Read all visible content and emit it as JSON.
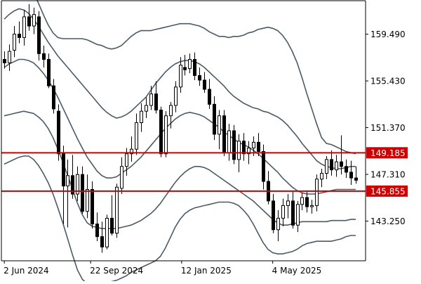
{
  "chart_data": {
    "type": "candlestick",
    "y_axis": {
      "range": [
        139.8,
        162.4
      ],
      "ticks": [
        "159.490",
        "155.430",
        "151.370",
        "147.310",
        "143.250"
      ],
      "tick_values": [
        159.49,
        155.43,
        151.37,
        147.31,
        143.25
      ]
    },
    "x_axis": {
      "range": [
        0,
        1
      ],
      "labels": [
        "2 Jun 2024",
        "22 Sep 2024",
        "12 Jan 2025",
        "4 May 2025"
      ],
      "label_positions": [
        0.008,
        0.245,
        0.495,
        0.745
      ]
    },
    "horizontal_lines": [
      {
        "value": 149.185,
        "label": "149.185"
      },
      {
        "value": 145.855,
        "label": "145.855"
      }
    ],
    "candles": [
      [
        157.3,
        158.0,
        156.5,
        157.0
      ],
      [
        157.0,
        158.6,
        156.3,
        158.0
      ],
      [
        158.1,
        160.2,
        157.5,
        159.5
      ],
      [
        159.5,
        160.6,
        158.7,
        159.2
      ],
      [
        159.2,
        161.6,
        158.5,
        161.0
      ],
      [
        161.0,
        162.1,
        159.8,
        160.2
      ],
      [
        160.2,
        161.8,
        159.5,
        161.2
      ],
      [
        161.0,
        161.5,
        157.2,
        157.8
      ],
      [
        157.8,
        158.5,
        156.6,
        157.3
      ],
      [
        157.3,
        157.8,
        154.8,
        155.0
      ],
      [
        155.0,
        155.6,
        152.6,
        153.0
      ],
      [
        152.8,
        153.4,
        148.5,
        149.1
      ],
      [
        149.1,
        149.8,
        143.0,
        146.3
      ],
      [
        146.3,
        148.6,
        142.7,
        147.2
      ],
      [
        147.2,
        149.0,
        145.2,
        145.6
      ],
      [
        145.6,
        148.0,
        145.0,
        147.3
      ],
      [
        147.3,
        148.0,
        143.9,
        144.1
      ],
      [
        144.1,
        147.3,
        143.5,
        146.0
      ],
      [
        146.0,
        146.7,
        142.6,
        143.0
      ],
      [
        143.0,
        144.0,
        141.5,
        141.9
      ],
      [
        141.9,
        143.2,
        140.5,
        141.0
      ],
      [
        141.0,
        143.8,
        140.8,
        143.5
      ],
      [
        143.5,
        145.5,
        142.0,
        142.2
      ],
      [
        142.2,
        146.5,
        141.8,
        146.2
      ],
      [
        146.1,
        148.8,
        145.6,
        148.0
      ],
      [
        148.0,
        149.6,
        147.2,
        149.1
      ],
      [
        149.1,
        150.6,
        148.4,
        149.5
      ],
      [
        149.5,
        152.6,
        149.0,
        151.8
      ],
      [
        151.8,
        153.5,
        151.0,
        152.8
      ],
      [
        152.8,
        154.0,
        152.2,
        153.3
      ],
      [
        153.3,
        155.0,
        152.9,
        154.3
      ],
      [
        154.3,
        155.4,
        152.6,
        152.9
      ],
      [
        152.9,
        153.2,
        148.8,
        149.1
      ],
      [
        149.1,
        152.8,
        148.8,
        152.4
      ],
      [
        152.4,
        153.6,
        151.3,
        153.3
      ],
      [
        153.3,
        155.4,
        152.7,
        154.9
      ],
      [
        154.9,
        157.5,
        154.4,
        156.8
      ],
      [
        156.6,
        157.7,
        155.9,
        156.4
      ],
      [
        156.5,
        157.8,
        156.1,
        157.3
      ],
      [
        157.3,
        157.9,
        155.5,
        155.9
      ],
      [
        155.9,
        156.6,
        155.0,
        155.5
      ],
      [
        155.5,
        156.2,
        154.4,
        154.7
      ],
      [
        154.7,
        155.6,
        153.0,
        153.4
      ],
      [
        153.4,
        154.1,
        150.3,
        150.8
      ],
      [
        150.8,
        152.9,
        149.5,
        152.4
      ],
      [
        152.4,
        152.9,
        148.9,
        149.2
      ],
      [
        149.2,
        151.7,
        148.5,
        151.1
      ],
      [
        151.1,
        151.6,
        148.2,
        148.6
      ],
      [
        148.6,
        150.8,
        147.5,
        150.2
      ],
      [
        150.2,
        150.9,
        148.5,
        149.1
      ],
      [
        149.1,
        150.2,
        148.2,
        149.6
      ],
      [
        149.6,
        150.6,
        148.9,
        150.1
      ],
      [
        150.1,
        150.9,
        148.9,
        149.3
      ],
      [
        149.3,
        149.9,
        146.0,
        146.7
      ],
      [
        146.7,
        147.6,
        144.7,
        145.0
      ],
      [
        145.0,
        145.6,
        142.2,
        142.5
      ],
      [
        142.5,
        144.2,
        141.5,
        143.5
      ],
      [
        143.5,
        145.2,
        142.8,
        144.6
      ],
      [
        144.6,
        145.6,
        143.5,
        145.0
      ],
      [
        145.0,
        145.8,
        142.6,
        142.9
      ],
      [
        142.9,
        145.0,
        142.3,
        144.7
      ],
      [
        144.7,
        145.7,
        144.2,
        145.3
      ],
      [
        145.3,
        145.8,
        144.0,
        144.5
      ],
      [
        144.5,
        145.1,
        143.9,
        144.6
      ],
      [
        144.6,
        147.3,
        144.1,
        146.9
      ],
      [
        146.9,
        147.8,
        146.2,
        147.4
      ],
      [
        147.4,
        148.9,
        146.9,
        148.6
      ],
      [
        148.6,
        149.4,
        147.2,
        147.7
      ],
      [
        147.7,
        149.0,
        147.1,
        148.4
      ],
      [
        148.4,
        150.7,
        147.3,
        148.0
      ],
      [
        148.0,
        148.6,
        147.0,
        147.5
      ],
      [
        147.5,
        148.5,
        146.4,
        147.0
      ],
      [
        147.0,
        148.0,
        146.5,
        146.8
      ]
    ],
    "bands": [
      {
        "name": "upper",
        "values": [
          163.4,
          163.9,
          164.4,
          164.7,
          164.6,
          164.0,
          163.2,
          162.2,
          161.2,
          160.3,
          159.6,
          159.2,
          159.1,
          159.1,
          159.1,
          159.1,
          159.1,
          159.0,
          158.8,
          158.6,
          158.5,
          158.3,
          158.2,
          158.3,
          158.5,
          158.9,
          159.3,
          159.6,
          159.8,
          159.8,
          159.8,
          159.9,
          160.0,
          160.1,
          160.2,
          160.3,
          160.4,
          160.4,
          160.4,
          160.3,
          160.2,
          160.0,
          159.7,
          159.5,
          159.3,
          159.3,
          159.2,
          159.3,
          159.3,
          159.4,
          159.6,
          159.7,
          159.9,
          160.0,
          160.1,
          160.0,
          159.8,
          159.4,
          158.8,
          158.0,
          157.0,
          155.7,
          154.3,
          153.0,
          151.7,
          150.5,
          150.0,
          149.9,
          149.7,
          149.5,
          149.3,
          149.2,
          149.1
        ]
      },
      {
        "name": "upper-mid",
        "values": [
          160.8,
          161.2,
          161.5,
          161.7,
          161.6,
          161.3,
          160.8,
          160.2,
          159.5,
          158.8,
          158.2,
          157.6,
          157.1,
          156.6,
          156.1,
          155.6,
          155.1,
          154.6,
          154.1,
          153.6,
          153.1,
          152.7,
          152.4,
          152.2,
          152.3,
          152.5,
          152.8,
          153.2,
          153.6,
          154.0,
          154.6,
          155.2,
          155.7,
          156.2,
          156.6,
          156.9,
          157.1,
          157.2,
          157.2,
          157.1,
          156.9,
          156.6,
          156.2,
          155.8,
          155.4,
          155.0,
          154.5,
          154.1,
          153.8,
          153.5,
          153.3,
          153.1,
          153.0,
          152.8,
          152.7,
          152.5,
          152.3,
          152.0,
          151.6,
          151.1,
          150.6,
          150.0,
          149.5,
          149.0,
          148.5,
          148.2,
          148.0,
          147.9,
          147.8,
          147.8,
          147.9,
          148.0,
          148.0
        ]
      },
      {
        "name": "middle",
        "values": [
          156.6,
          156.9,
          157.1,
          157.3,
          157.3,
          157.2,
          157.0,
          156.6,
          156.1,
          155.5,
          154.8,
          154.0,
          153.1,
          152.2,
          151.3,
          150.4,
          149.6,
          148.8,
          148.2,
          147.6,
          147.2,
          147.0,
          147.0,
          147.1,
          147.4,
          147.7,
          148.0,
          148.4,
          148.8,
          149.3,
          149.8,
          150.3,
          150.8,
          151.3,
          151.7,
          152.1,
          152.4,
          152.6,
          152.7,
          152.6,
          152.5,
          152.3,
          152.0,
          151.7,
          151.4,
          151.0,
          150.7,
          150.4,
          150.1,
          149.9,
          149.7,
          149.4,
          149.1,
          148.7,
          148.3,
          147.9,
          147.5,
          147.0,
          146.6,
          146.2,
          145.9,
          145.7,
          145.6,
          145.6,
          145.6,
          145.7,
          145.8,
          145.9,
          146.0,
          146.0,
          146.0,
          146.0,
          146.0
        ]
      },
      {
        "name": "lower-mid",
        "values": [
          152.4,
          152.5,
          152.6,
          152.7,
          152.8,
          152.7,
          152.6,
          152.3,
          151.9,
          151.3,
          150.5,
          149.5,
          148.4,
          147.2,
          146.0,
          144.8,
          143.8,
          143.1,
          142.8,
          142.7,
          142.6,
          142.6,
          142.6,
          142.6,
          142.7,
          142.8,
          142.9,
          143.1,
          143.3,
          143.6,
          143.9,
          144.3,
          144.8,
          145.4,
          146.0,
          146.6,
          147.1,
          147.5,
          147.8,
          148.0,
          148.0,
          147.9,
          147.7,
          147.4,
          147.1,
          146.8,
          146.5,
          146.2,
          145.9,
          145.6,
          145.3,
          145.0,
          144.6,
          144.2,
          143.8,
          143.4,
          143.1,
          142.9,
          142.9,
          143.0,
          143.1,
          143.2,
          143.2,
          143.2,
          143.2,
          143.2,
          143.2,
          143.3,
          143.3,
          143.3,
          143.3,
          143.4,
          143.4
        ]
      },
      {
        "name": "lower",
        "values": [
          148.2,
          148.4,
          148.6,
          148.8,
          148.9,
          148.9,
          148.6,
          148.1,
          147.4,
          146.6,
          145.6,
          144.4,
          143.1,
          141.7,
          140.3,
          139.0,
          138.2,
          137.8,
          137.6,
          137.6,
          137.7,
          137.8,
          138.0,
          138.1,
          138.3,
          138.5,
          138.8,
          139.0,
          139.2,
          139.4,
          139.6,
          139.8,
          140.2,
          140.9,
          141.8,
          142.7,
          143.4,
          143.9,
          144.2,
          144.4,
          144.5,
          144.6,
          144.7,
          144.8,
          144.9,
          144.9,
          144.9,
          144.8,
          144.6,
          144.2,
          143.7,
          143.0,
          142.2,
          141.4,
          140.8,
          140.5,
          140.4,
          140.4,
          140.5,
          140.6,
          140.8,
          141.1,
          141.3,
          141.4,
          141.5,
          141.5,
          141.5,
          141.5,
          141.6,
          141.7,
          141.9,
          142.0,
          142.0
        ]
      }
    ],
    "colors": {
      "background": "#ffffff",
      "candle": "#000000",
      "band": "#4a5a66",
      "hline": "#cc0000",
      "hline_label_text": "#ffffff",
      "axis": "#000000"
    }
  }
}
